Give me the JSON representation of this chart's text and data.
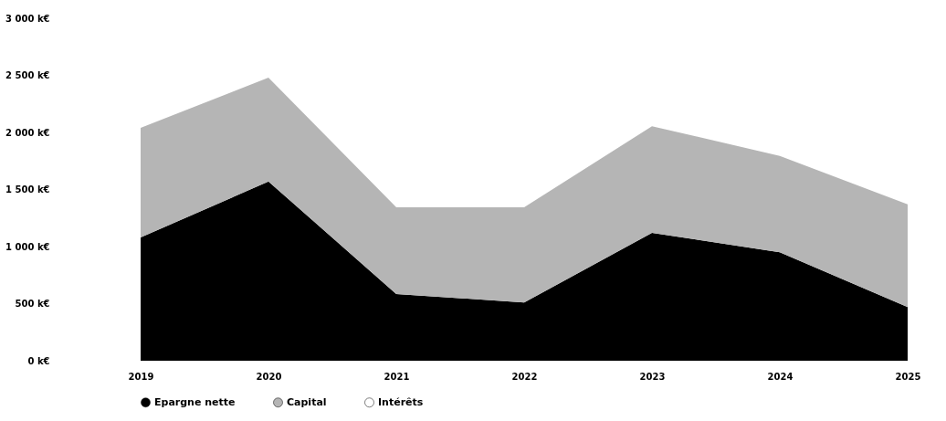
{
  "chart_data": {
    "type": "area",
    "stacked": true,
    "categories": [
      "2019",
      "2020",
      "2021",
      "2022",
      "2023",
      "2024",
      "2025"
    ],
    "series": [
      {
        "name": "Epargne nette",
        "color": "#000000",
        "values": [
          1080,
          1570,
          585,
          510,
          1120,
          950,
          470
        ]
      },
      {
        "name": "Capital",
        "color": "#b5b5b5",
        "values": [
          960,
          910,
          760,
          835,
          935,
          845,
          900
        ]
      },
      {
        "name": "Intérêts",
        "color": "#ffffff",
        "values": [
          null,
          null,
          null,
          null,
          null,
          null,
          null
        ]
      }
    ],
    "ylim": [
      0,
      3000
    ],
    "yticks": [
      {
        "value": 0,
        "label": "0 k€"
      },
      {
        "value": 500,
        "label": "500 k€"
      },
      {
        "value": 1000,
        "label": "1 000 k€"
      },
      {
        "value": 1500,
        "label": "1 500 k€"
      },
      {
        "value": 2000,
        "label": "2 000 k€"
      },
      {
        "value": 2500,
        "label": "2 500 k€"
      },
      {
        "value": 3000,
        "label": "3 000 k€"
      }
    ],
    "legend": "bottom",
    "grid": false
  }
}
